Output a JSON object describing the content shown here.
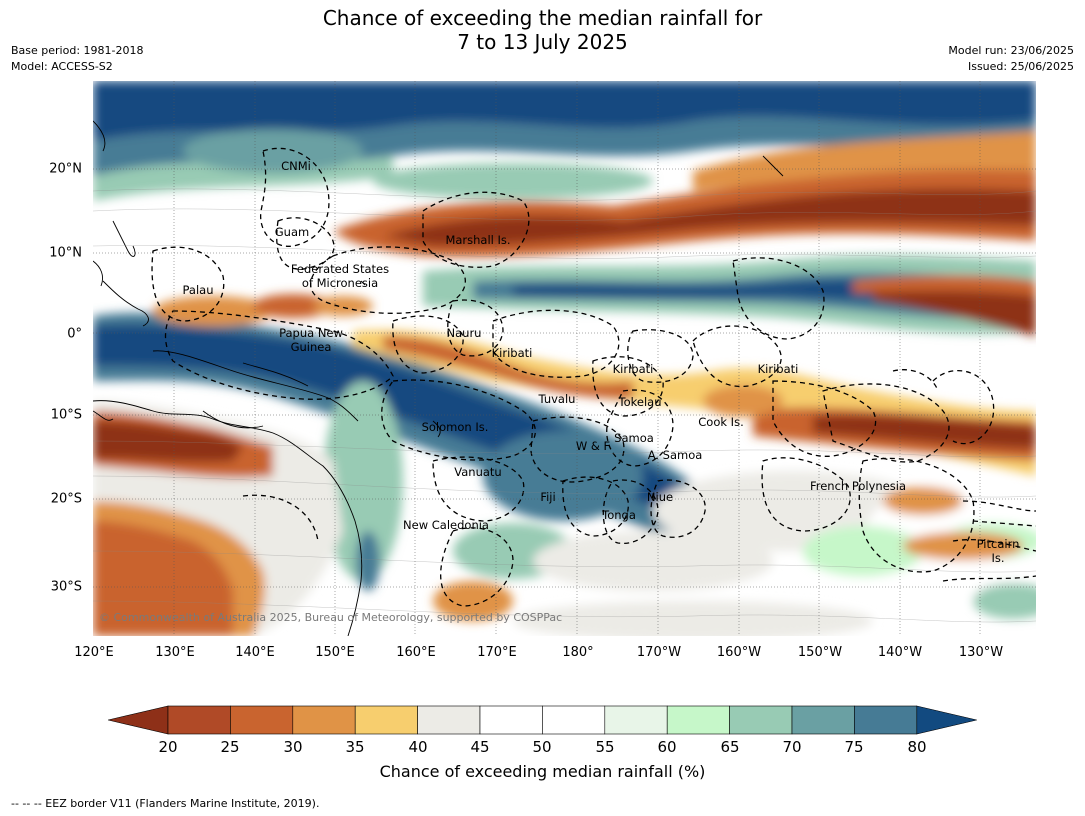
{
  "title_line1": "Chance of exceeding the median rainfall for",
  "title_line2": "7 to 13 July 2025",
  "meta_left": {
    "base_period": "Base period: 1981-2018",
    "model": "Model: ACCESS-S2"
  },
  "meta_right": {
    "model_run": "Model run: 23/06/2025",
    "issued": "Issued: 25/06/2025"
  },
  "copyright": "© Commonwealth of Australia 2025, Bureau of Meteorology, supported by COSPPac",
  "lat_labels": [
    "20°N",
    "10°N",
    "0°",
    "10°S",
    "20°S",
    "30°S"
  ],
  "lon_labels": [
    "120°E",
    "130°E",
    "140°E",
    "150°E",
    "160°E",
    "170°E",
    "180°",
    "170°W",
    "160°W",
    "150°W",
    "140°W",
    "130°W"
  ],
  "regions": {
    "cnmi": "CNMi",
    "guam": "Guam",
    "marshall": "Marshall Is.",
    "fsm_line1": "Federated States",
    "fsm_line2": "of Micronesia",
    "palau": "Palau",
    "png_line1": "Papua New",
    "png_line2": "Guinea",
    "nauru": "Nauru",
    "kiribati_w": "Kiribati",
    "kiribati_c": "Kiribati",
    "kiribati_e": "Kiribati",
    "tuvalu": "Tuvalu",
    "tokelau": "Tokelau",
    "cook": "Cook Is.",
    "solomon": "Solomon Is.",
    "wf": "W & F",
    "samoa": "Samoa",
    "asamoa": "A. Samoa",
    "vanuatu": "Vanuatu",
    "fiji": "Fiji",
    "niue": "Niue",
    "tonga": "Tonga",
    "fp": "French Polynesia",
    "newcal": "New Caledonia",
    "pitcairn_line1": "Pitcairn",
    "pitcairn_line2": "Is."
  },
  "colorbar": {
    "ticks": [
      "20",
      "25",
      "30",
      "35",
      "40",
      "45",
      "50",
      "55",
      "60",
      "65",
      "70",
      "75",
      "80"
    ],
    "colors": [
      "#8e3018",
      "#b04a27",
      "#c9642f",
      "#e09346",
      "#f7ce6e",
      "#ecebe6",
      "#ffffff",
      "#ffffff",
      "#e8f5e8",
      "#c6f7c9",
      "#98cbb4",
      "#6aa0a3",
      "#467b95",
      "#124a80"
    ],
    "label": "Chance of exceeding median rainfall (%)"
  },
  "footer": "--  --  -- EEZ border V11 (Flanders Marine Institute, 2019)."
}
